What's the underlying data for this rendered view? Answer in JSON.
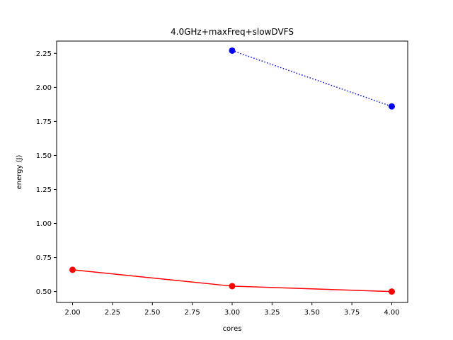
{
  "chart_data": {
    "type": "line",
    "title": "4.0GHz+maxFreq+slowDVFS",
    "xlabel": "cores",
    "ylabel": "energy (J)",
    "xlim": [
      1.9,
      4.1
    ],
    "ylim": [
      0.42,
      2.34
    ],
    "grid": false,
    "xticks": [
      2.0,
      2.25,
      2.5,
      2.75,
      3.0,
      3.25,
      3.5,
      3.75,
      4.0
    ],
    "xtick_labels": [
      "2.00",
      "2.25",
      "2.50",
      "2.75",
      "3.00",
      "3.25",
      "3.50",
      "3.75",
      "4.00"
    ],
    "yticks": [
      0.5,
      0.75,
      1.0,
      1.25,
      1.5,
      1.75,
      2.0,
      2.25
    ],
    "ytick_labels": [
      "0.50",
      "0.75",
      "1.00",
      "1.25",
      "1.50",
      "1.75",
      "2.00",
      "2.25"
    ],
    "series": [
      {
        "color": "#0000ff",
        "line_style": "dotted",
        "marker": "circle",
        "x": [
          3,
          4
        ],
        "y": [
          2.27,
          1.86
        ]
      },
      {
        "color": "#ff0000",
        "line_style": "solid",
        "marker": "circle",
        "x": [
          2,
          3,
          4
        ],
        "y": [
          0.66,
          0.54,
          0.5
        ]
      }
    ]
  }
}
